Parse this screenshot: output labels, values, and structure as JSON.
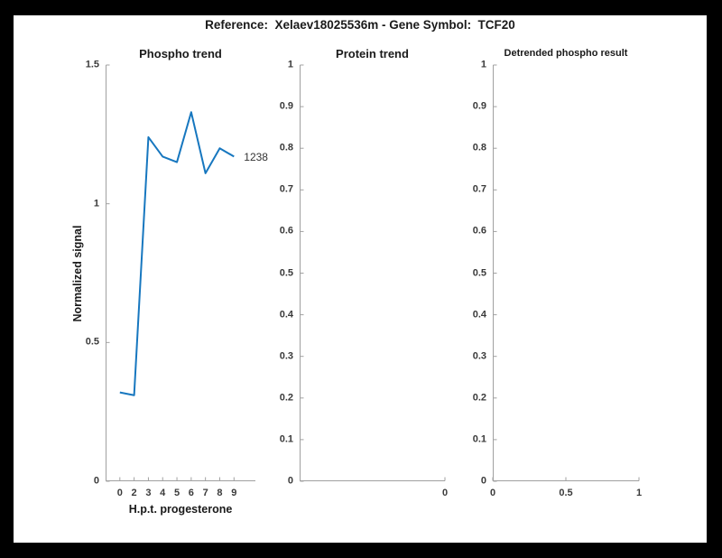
{
  "figure": {
    "title": "Reference:  Xelaev18025536m - Gene Symbol:  TCF20"
  },
  "colors": {
    "background": "#000000",
    "canvas": "#ffffff",
    "line": "#1777bf",
    "axis": "#a0a0a0",
    "tick_text": "#3a3a3a",
    "text": "#1a1a1a"
  },
  "chart_data": [
    {
      "type": "line",
      "title": "Phospho trend",
      "xlabel": "H.p.t. progesterone",
      "ylabel": "Normalized signal",
      "xlim": [
        0,
        10.5
      ],
      "ylim": [
        0,
        1.5
      ],
      "x": [
        1,
        2,
        3,
        4,
        5,
        6,
        7,
        8,
        9
      ],
      "xtick_positions": [
        1,
        2,
        3,
        4,
        5,
        6,
        7,
        8,
        9
      ],
      "xtick_labels": [
        "0",
        "2",
        "3",
        "4",
        "5",
        "6",
        "7",
        "8",
        "9"
      ],
      "values": [
        0.32,
        0.31,
        1.24,
        1.17,
        1.15,
        1.33,
        1.11,
        1.2,
        1.17
      ],
      "ytick_positions": [
        0,
        0.5,
        1,
        1.5
      ],
      "ytick_labels": [
        "0",
        "0.5",
        "1",
        "1.5"
      ],
      "annotation": "1238",
      "grid": false,
      "legend": null
    },
    {
      "type": "line",
      "title": "Protein trend",
      "xlabel": "",
      "ylabel": "",
      "xlim": [
        0,
        1
      ],
      "ylim": [
        0,
        1
      ],
      "x": [],
      "xtick_positions": [
        1
      ],
      "xtick_labels": [
        "0"
      ],
      "values": [],
      "ytick_positions": [
        0,
        0.1,
        0.2,
        0.3,
        0.4,
        0.5,
        0.6,
        0.7,
        0.8,
        0.9,
        1
      ],
      "ytick_labels": [
        "0",
        "0.1",
        "0.2",
        "0.3",
        "0.4",
        "0.5",
        "0.6",
        "0.7",
        "0.8",
        "0.9",
        "1"
      ],
      "annotation": null,
      "grid": false,
      "legend": null
    },
    {
      "type": "line",
      "title": "Detrended phospho result",
      "xlabel": "",
      "ylabel": "",
      "xlim": [
        0,
        1
      ],
      "ylim": [
        0,
        1
      ],
      "x": [],
      "xtick_positions": [
        0,
        0.5,
        1
      ],
      "xtick_labels": [
        "0",
        "0.5",
        "1"
      ],
      "values": [],
      "ytick_positions": [
        0,
        0.1,
        0.2,
        0.3,
        0.4,
        0.5,
        0.6,
        0.7,
        0.8,
        0.9,
        1
      ],
      "ytick_labels": [
        "0",
        "0.1",
        "0.2",
        "0.3",
        "0.4",
        "0.5",
        "0.6",
        "0.7",
        "0.8",
        "0.9",
        "1"
      ],
      "annotation": null,
      "grid": false,
      "legend": null
    }
  ]
}
